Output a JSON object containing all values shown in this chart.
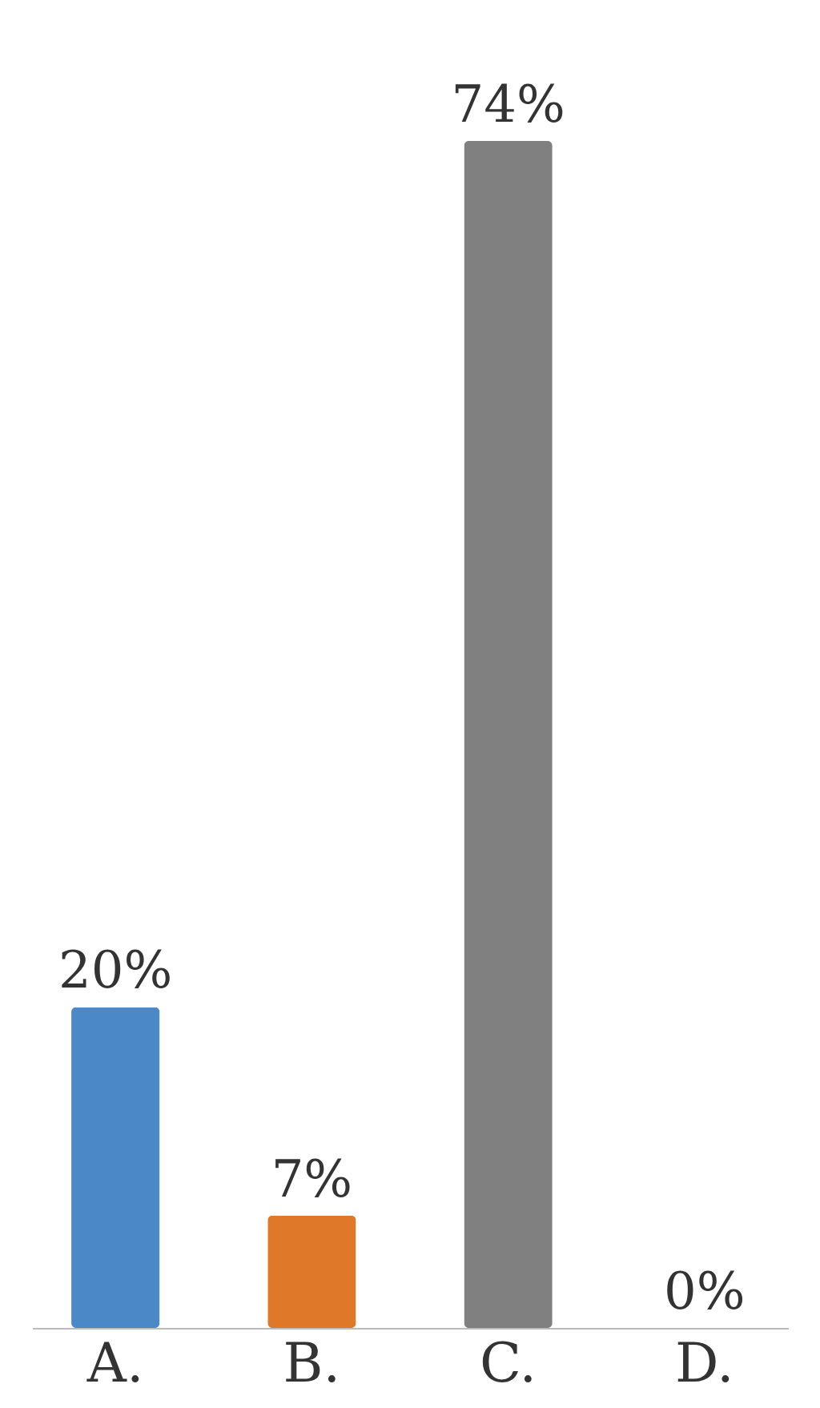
{
  "chart_data": {
    "type": "bar",
    "categories": [
      "A.",
      "B.",
      "C.",
      "D."
    ],
    "values": [
      20,
      7,
      74,
      0
    ],
    "colors": [
      "#4a88c8",
      "#e0782a",
      "#808080",
      "#f2c200"
    ],
    "value_labels": [
      "20%",
      "7%",
      "74%",
      "0%"
    ]
  }
}
